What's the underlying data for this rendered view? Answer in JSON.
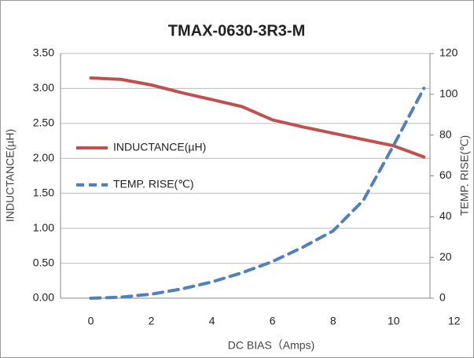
{
  "chart_data": {
    "type": "line",
    "title": "TMAX-0630-3R3-M",
    "x": [
      0,
      1,
      2,
      3,
      4,
      5,
      6,
      7,
      8,
      9,
      10,
      11
    ],
    "series": [
      {
        "name": "INDUCTANCE(µH)",
        "color": "#c0504d",
        "dash": false,
        "values": [
          3.15,
          3.13,
          3.05,
          2.94,
          2.84,
          2.74,
          2.55,
          2.45,
          2.36,
          2.27,
          2.18,
          2.02
        ]
      },
      {
        "name": "TEMP. RISE(℃)",
        "color": "#4f81bd",
        "dash": true,
        "axis": "y2",
        "values": [
          0,
          0.5,
          2,
          4.5,
          8,
          12.5,
          18,
          25,
          33,
          48,
          75,
          103
        ]
      }
    ],
    "xlabel": "DC BIAS（Amps)",
    "ylabel": "INDUCTANCE(µH)",
    "y2label": "TEMP. RISE(℃)",
    "xlim": [
      -1,
      11.2
    ],
    "xticks": [
      0,
      2,
      4,
      6,
      8,
      10,
      12
    ],
    "ylim": [
      0,
      3.5
    ],
    "yticks": [
      {
        "value": 0,
        "label": "0.00"
      },
      {
        "value": 0.5,
        "label": "0.50"
      },
      {
        "value": 1,
        "label": "1.00"
      },
      {
        "value": 1.5,
        "label": "1.50"
      },
      {
        "value": 2,
        "label": "2.00"
      },
      {
        "value": 2.5,
        "label": "2.50"
      },
      {
        "value": 3,
        "label": "3.00"
      },
      {
        "value": 3.5,
        "label": "3.50"
      }
    ],
    "y2lim": [
      0,
      120
    ],
    "y2ticks": [
      0,
      20,
      40,
      60,
      80,
      100,
      120
    ],
    "grid": true
  }
}
